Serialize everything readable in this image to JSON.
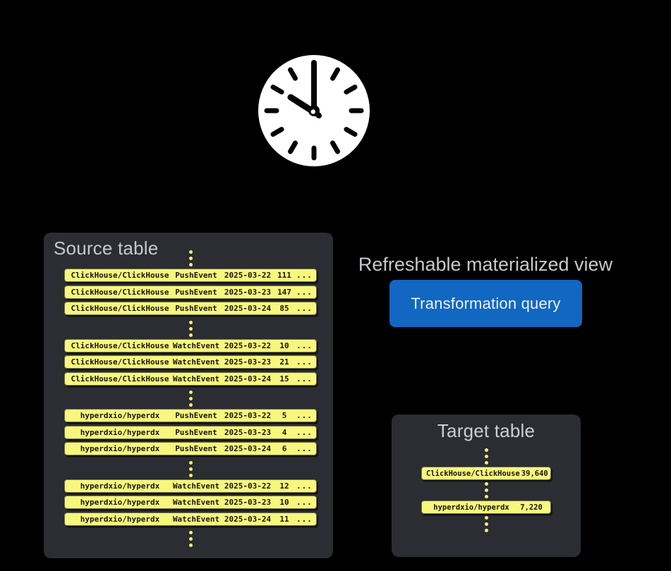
{
  "clock": {
    "time_shown": "10:00"
  },
  "source_table": {
    "title": "Source table",
    "groups": [
      {
        "rows": [
          {
            "repo": "ClickHouse/ClickHouse",
            "event": "PushEvent",
            "date": "2025-03-22",
            "count": "111",
            "more": "..."
          },
          {
            "repo": "ClickHouse/ClickHouse",
            "event": "PushEvent",
            "date": "2025-03-23",
            "count": "147",
            "more": "..."
          },
          {
            "repo": "ClickHouse/ClickHouse",
            "event": "PushEvent",
            "date": "2025-03-24",
            "count": "85",
            "more": "..."
          }
        ]
      },
      {
        "rows": [
          {
            "repo": "ClickHouse/ClickHouse",
            "event": "WatchEvent",
            "date": "2025-03-22",
            "count": "10",
            "more": "..."
          },
          {
            "repo": "ClickHouse/ClickHouse",
            "event": "WatchEvent",
            "date": "2025-03-23",
            "count": "21",
            "more": "..."
          },
          {
            "repo": "ClickHouse/ClickHouse",
            "event": "WatchEvent",
            "date": "2025-03-24",
            "count": "15",
            "more": "..."
          }
        ]
      },
      {
        "rows": [
          {
            "repo": "hyperdxio/hyperdx",
            "event": "PushEvent",
            "date": "2025-03-22",
            "count": "5",
            "more": "..."
          },
          {
            "repo": "hyperdxio/hyperdx",
            "event": "PushEvent",
            "date": "2025-03-23",
            "count": "4",
            "more": "..."
          },
          {
            "repo": "hyperdxio/hyperdx",
            "event": "PushEvent",
            "date": "2025-03-24",
            "count": "6",
            "more": "..."
          }
        ]
      },
      {
        "rows": [
          {
            "repo": "hyperdxio/hyperdx",
            "event": "WatchEvent",
            "date": "2025-03-22",
            "count": "12",
            "more": "..."
          },
          {
            "repo": "hyperdxio/hyperdx",
            "event": "WatchEvent",
            "date": "2025-03-23",
            "count": "10",
            "more": "..."
          },
          {
            "repo": "hyperdxio/hyperdx",
            "event": "WatchEvent",
            "date": "2025-03-24",
            "count": "11",
            "more": "..."
          }
        ]
      }
    ]
  },
  "materialized_view": {
    "label": "Refreshable materialized view",
    "button_label": "Transformation query"
  },
  "target_table": {
    "title": "Target table",
    "rows": [
      {
        "repo": "ClickHouse/ClickHouse",
        "count": "39,640"
      },
      {
        "repo": "hyperdxio/hyperdx",
        "count": "7,220"
      }
    ]
  },
  "colors": {
    "background": "#000000",
    "panel": "#2b2d32",
    "row_yellow": "#f7f67d",
    "dot_yellow": "#f2ef6f",
    "accent_blue": "#1167c1",
    "heading_gray": "#c7c9cc",
    "button_text": "#eef2f6",
    "row_text": "#15160f"
  }
}
